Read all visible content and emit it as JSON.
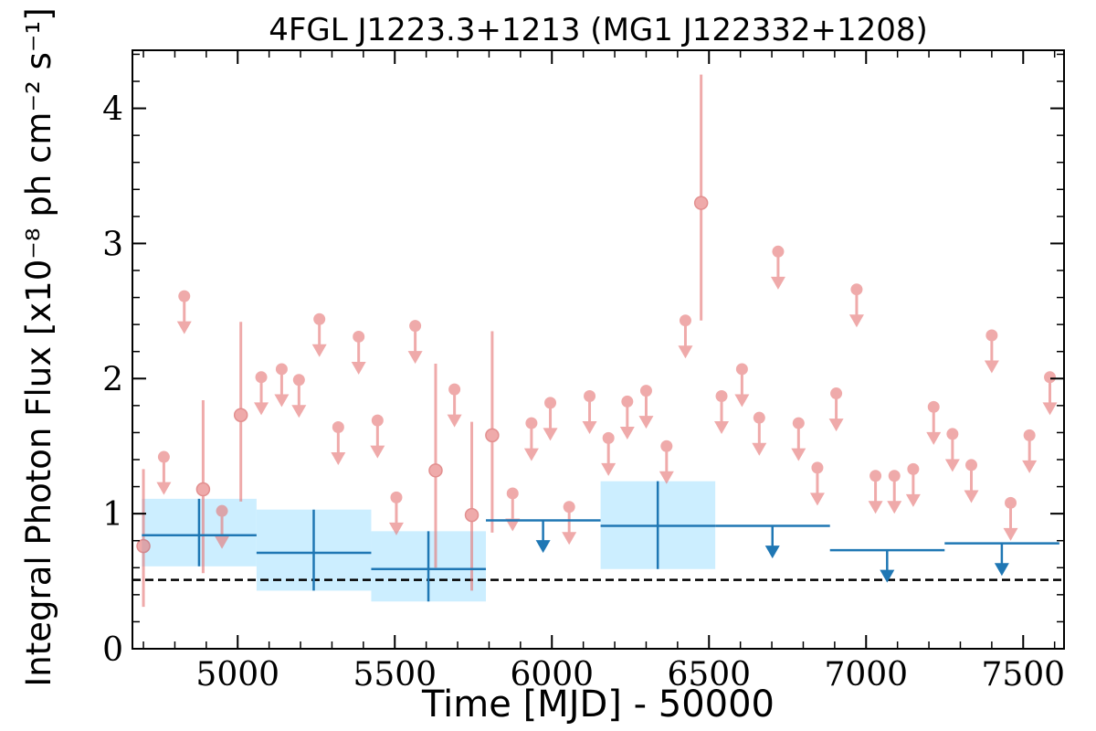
{
  "chart_data": {
    "type": "scatter",
    "title": "4FGL J1223.3+1213 (MG1 J122332+1208)",
    "xlabel": "Time [MJD] - 50000",
    "ylabel": "Integral Photon Flux [x10⁻⁸ ph cm⁻² s⁻¹]",
    "xlim": [
      4665,
      7630
    ],
    "ylim": [
      0,
      4.43
    ],
    "xticks": [
      5000,
      5500,
      6000,
      6500,
      7000,
      7500
    ],
    "xtick_labels": [
      "5000",
      "5500",
      "6000",
      "6500",
      "7000",
      "7500"
    ],
    "yticks": [
      0,
      1,
      2,
      3,
      4
    ],
    "ytick_labels": [
      "0",
      "1",
      "2",
      "3",
      "4"
    ],
    "reference_line": {
      "y": 0.51,
      "style": "dashed",
      "color": "#000000"
    },
    "colors": {
      "short_bins": "#e57373",
      "long_bins": "#1f77b4",
      "long_band": "#cceeff"
    },
    "series": [
      {
        "kind": "short_bins_detections",
        "points": [
          {
            "x": 4700,
            "y": 0.76,
            "ylo": 0.31,
            "yhi": 1.33
          },
          {
            "x": 4890,
            "y": 1.18,
            "ylo": 0.56,
            "yhi": 1.84
          },
          {
            "x": 5010,
            "y": 1.73,
            "ylo": 1.09,
            "yhi": 2.42
          },
          {
            "x": 5630,
            "y": 1.32,
            "ylo": 0.6,
            "yhi": 2.11
          },
          {
            "x": 5745,
            "y": 0.99,
            "ylo": 0.43,
            "yhi": 1.68
          },
          {
            "x": 5810,
            "y": 1.58,
            "ylo": 0.86,
            "yhi": 2.35
          },
          {
            "x": 6475,
            "y": 3.3,
            "ylo": 2.43,
            "yhi": 4.25
          }
        ]
      },
      {
        "kind": "short_bins_upper_limits",
        "points": [
          {
            "x": 4765,
            "y": 1.42
          },
          {
            "x": 4830,
            "y": 2.61
          },
          {
            "x": 4950,
            "y": 1.02
          },
          {
            "x": 5075,
            "y": 2.01
          },
          {
            "x": 5140,
            "y": 2.07
          },
          {
            "x": 5195,
            "y": 1.99
          },
          {
            "x": 5260,
            "y": 2.44
          },
          {
            "x": 5320,
            "y": 1.64
          },
          {
            "x": 5385,
            "y": 2.31
          },
          {
            "x": 5445,
            "y": 1.69
          },
          {
            "x": 5505,
            "y": 1.12
          },
          {
            "x": 5565,
            "y": 2.39
          },
          {
            "x": 5690,
            "y": 1.92
          },
          {
            "x": 5875,
            "y": 1.15
          },
          {
            "x": 5935,
            "y": 1.67
          },
          {
            "x": 5995,
            "y": 1.82
          },
          {
            "x": 6055,
            "y": 1.05
          },
          {
            "x": 6120,
            "y": 1.87
          },
          {
            "x": 6180,
            "y": 1.56
          },
          {
            "x": 6240,
            "y": 1.83
          },
          {
            "x": 6300,
            "y": 1.91
          },
          {
            "x": 6365,
            "y": 1.5
          },
          {
            "x": 6425,
            "y": 2.43
          },
          {
            "x": 6540,
            "y": 1.87
          },
          {
            "x": 6605,
            "y": 2.07
          },
          {
            "x": 6660,
            "y": 1.71
          },
          {
            "x": 6720,
            "y": 2.94
          },
          {
            "x": 6785,
            "y": 1.67
          },
          {
            "x": 6845,
            "y": 1.34
          },
          {
            "x": 6905,
            "y": 1.89
          },
          {
            "x": 6970,
            "y": 2.66
          },
          {
            "x": 7030,
            "y": 1.28
          },
          {
            "x": 7090,
            "y": 1.28
          },
          {
            "x": 7150,
            "y": 1.33
          },
          {
            "x": 7215,
            "y": 1.79
          },
          {
            "x": 7275,
            "y": 1.59
          },
          {
            "x": 7335,
            "y": 1.36
          },
          {
            "x": 7400,
            "y": 2.32
          },
          {
            "x": 7460,
            "y": 1.08
          },
          {
            "x": 7520,
            "y": 1.58
          },
          {
            "x": 7585,
            "y": 2.01
          }
        ]
      },
      {
        "kind": "long_bins_detections",
        "points": [
          {
            "x0": 4695,
            "x1": 5060,
            "xc": 4877,
            "y": 0.84,
            "ylo": 0.61,
            "yhi": 1.11
          },
          {
            "x0": 5060,
            "x1": 5425,
            "xc": 5242,
            "y": 0.71,
            "ylo": 0.43,
            "yhi": 1.03
          },
          {
            "x0": 5425,
            "x1": 5790,
            "xc": 5607,
            "y": 0.59,
            "ylo": 0.35,
            "yhi": 0.87
          },
          {
            "x0": 6155,
            "x1": 6520,
            "xc": 6337,
            "y": 0.91,
            "ylo": 0.59,
            "yhi": 1.24
          }
        ]
      },
      {
        "kind": "long_bins_upper_limits",
        "points": [
          {
            "x0": 5790,
            "x1": 6155,
            "xc": 5972,
            "y": 0.95
          },
          {
            "x0": 6520,
            "x1": 6885,
            "xc": 6702,
            "y": 0.91
          },
          {
            "x0": 6885,
            "x1": 7250,
            "xc": 7067,
            "y": 0.73
          },
          {
            "x0": 7250,
            "x1": 7615,
            "xc": 7432,
            "y": 0.78
          }
        ]
      }
    ]
  }
}
